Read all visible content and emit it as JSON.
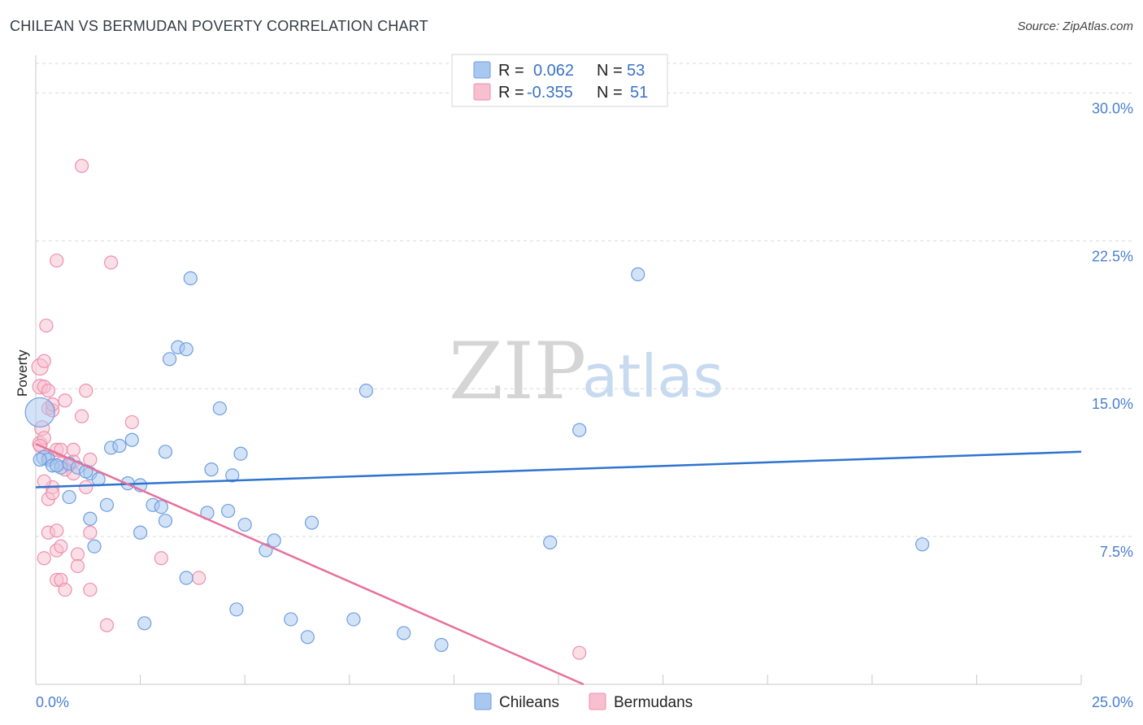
{
  "header": {
    "title": "CHILEAN VS BERMUDAN POVERTY CORRELATION CHART",
    "source": "Source: ZipAtlas.com"
  },
  "watermark": {
    "zip": "ZIP",
    "atlas": "atlas"
  },
  "colors": {
    "chilean_fill": "#a8c8f0",
    "chilean_stroke": "#6d9ee0",
    "chilean_line": "#2e74cf",
    "bermudan_fill": "#f7bfd0",
    "bermudan_stroke": "#ee8fae",
    "bermudan_line": "#e8709a",
    "tick_color": "#4a7fd0",
    "grid_color": "#d9d9d9"
  },
  "legend": {
    "rows": [
      {
        "r_label": "R =",
        "r_value": "0.062",
        "n_label": "N =",
        "n_value": "53"
      },
      {
        "r_label": "R =",
        "r_value": "-0.355",
        "n_label": "N =",
        "n_value": "51"
      }
    ]
  },
  "bottom_legend": [
    "Chileans",
    "Bermudans"
  ],
  "chart_data": {
    "type": "scatter",
    "title": "CHILEAN VS BERMUDAN POVERTY CORRELATION CHART",
    "xlabel": "",
    "ylabel": "Poverty",
    "xlim": [
      0,
      25
    ],
    "ylim": [
      0,
      31.5
    ],
    "x_tick_labels": [
      "0.0%",
      "25.0%"
    ],
    "y_ticks": [
      7.5,
      15.0,
      22.5,
      30.0
    ],
    "y_tick_labels": [
      "7.5%",
      "15.0%",
      "22.5%",
      "30.0%"
    ],
    "grid": true,
    "legend_position": "top-center",
    "series": [
      {
        "name": "Chileans",
        "r": 0.062,
        "n": 53,
        "trend": {
          "x": [
            0,
            25
          ],
          "y": [
            10.0,
            11.8
          ]
        },
        "points": [
          {
            "x": 0.1,
            "y": 13.8,
            "s": 18
          },
          {
            "x": 0.2,
            "y": 11.5,
            "s": 9
          },
          {
            "x": 0.3,
            "y": 11.4,
            "s": 8
          },
          {
            "x": 0.4,
            "y": 11.1,
            "s": 8
          },
          {
            "x": 0.6,
            "y": 11.0,
            "s": 8
          },
          {
            "x": 0.8,
            "y": 11.2,
            "s": 8
          },
          {
            "x": 1.0,
            "y": 11.0,
            "s": 8
          },
          {
            "x": 1.3,
            "y": 10.7,
            "s": 8
          },
          {
            "x": 1.5,
            "y": 10.4,
            "s": 8
          },
          {
            "x": 0.8,
            "y": 9.5,
            "s": 8
          },
          {
            "x": 1.3,
            "y": 8.4,
            "s": 8
          },
          {
            "x": 1.4,
            "y": 7.0,
            "s": 8
          },
          {
            "x": 1.7,
            "y": 9.1,
            "s": 8
          },
          {
            "x": 1.8,
            "y": 12.0,
            "s": 8
          },
          {
            "x": 2.0,
            "y": 12.1,
            "s": 8
          },
          {
            "x": 2.3,
            "y": 12.4,
            "s": 8
          },
          {
            "x": 2.2,
            "y": 10.2,
            "s": 8
          },
          {
            "x": 2.5,
            "y": 10.1,
            "s": 8
          },
          {
            "x": 2.5,
            "y": 7.7,
            "s": 8
          },
          {
            "x": 2.8,
            "y": 9.1,
            "s": 8
          },
          {
            "x": 3.0,
            "y": 9.0,
            "s": 8
          },
          {
            "x": 3.1,
            "y": 11.8,
            "s": 8
          },
          {
            "x": 3.1,
            "y": 8.3,
            "s": 8
          },
          {
            "x": 3.2,
            "y": 16.5,
            "s": 8
          },
          {
            "x": 3.4,
            "y": 17.1,
            "s": 8
          },
          {
            "x": 3.6,
            "y": 17.0,
            "s": 8
          },
          {
            "x": 3.7,
            "y": 20.6,
            "s": 8
          },
          {
            "x": 4.1,
            "y": 8.7,
            "s": 8
          },
          {
            "x": 4.2,
            "y": 10.9,
            "s": 8
          },
          {
            "x": 4.4,
            "y": 14.0,
            "s": 8
          },
          {
            "x": 4.6,
            "y": 8.8,
            "s": 8
          },
          {
            "x": 4.7,
            "y": 10.6,
            "s": 8
          },
          {
            "x": 4.9,
            "y": 11.7,
            "s": 8
          },
          {
            "x": 5.0,
            "y": 8.1,
            "s": 8
          },
          {
            "x": 3.6,
            "y": 5.4,
            "s": 8
          },
          {
            "x": 2.6,
            "y": 3.1,
            "s": 8
          },
          {
            "x": 4.8,
            "y": 3.8,
            "s": 8
          },
          {
            "x": 5.5,
            "y": 6.8,
            "s": 8
          },
          {
            "x": 5.7,
            "y": 7.3,
            "s": 8
          },
          {
            "x": 6.1,
            "y": 3.3,
            "s": 8
          },
          {
            "x": 6.5,
            "y": 2.4,
            "s": 8
          },
          {
            "x": 6.6,
            "y": 8.2,
            "s": 8
          },
          {
            "x": 7.6,
            "y": 3.3,
            "s": 8
          },
          {
            "x": 7.9,
            "y": 14.9,
            "s": 8
          },
          {
            "x": 8.8,
            "y": 2.6,
            "s": 8
          },
          {
            "x": 9.7,
            "y": 2.0,
            "s": 8
          },
          {
            "x": 12.3,
            "y": 7.2,
            "s": 8
          },
          {
            "x": 13.0,
            "y": 12.9,
            "s": 8
          },
          {
            "x": 14.4,
            "y": 20.8,
            "s": 8
          },
          {
            "x": 21.2,
            "y": 7.1,
            "s": 8
          },
          {
            "x": 0.1,
            "y": 11.4,
            "s": 8
          },
          {
            "x": 0.5,
            "y": 11.1,
            "s": 8
          },
          {
            "x": 1.2,
            "y": 10.8,
            "s": 8
          }
        ]
      },
      {
        "name": "Bermudans",
        "r": -0.355,
        "n": 51,
        "trend": {
          "x": [
            0,
            13.1
          ],
          "y": [
            12.2,
            0
          ]
        },
        "points": [
          {
            "x": 0.1,
            "y": 16.1,
            "s": 10
          },
          {
            "x": 0.1,
            "y": 15.1,
            "s": 9
          },
          {
            "x": 0.15,
            "y": 13.0,
            "s": 9
          },
          {
            "x": 0.1,
            "y": 12.2,
            "s": 9
          },
          {
            "x": 0.2,
            "y": 12.5,
            "s": 8
          },
          {
            "x": 0.2,
            "y": 16.4,
            "s": 8
          },
          {
            "x": 0.2,
            "y": 15.1,
            "s": 8
          },
          {
            "x": 0.25,
            "y": 18.2,
            "s": 8
          },
          {
            "x": 0.3,
            "y": 14.9,
            "s": 8
          },
          {
            "x": 0.3,
            "y": 14.0,
            "s": 8
          },
          {
            "x": 0.4,
            "y": 13.9,
            "s": 8
          },
          {
            "x": 0.4,
            "y": 14.2,
            "s": 8
          },
          {
            "x": 0.5,
            "y": 21.5,
            "s": 8
          },
          {
            "x": 0.5,
            "y": 11.9,
            "s": 8
          },
          {
            "x": 0.6,
            "y": 11.9,
            "s": 8
          },
          {
            "x": 0.7,
            "y": 14.4,
            "s": 8
          },
          {
            "x": 0.8,
            "y": 11.1,
            "s": 8
          },
          {
            "x": 0.9,
            "y": 11.9,
            "s": 8
          },
          {
            "x": 0.9,
            "y": 11.3,
            "s": 8
          },
          {
            "x": 0.9,
            "y": 10.7,
            "s": 8
          },
          {
            "x": 1.1,
            "y": 13.6,
            "s": 8
          },
          {
            "x": 1.2,
            "y": 14.9,
            "s": 8
          },
          {
            "x": 1.2,
            "y": 10.0,
            "s": 8
          },
          {
            "x": 1.3,
            "y": 11.4,
            "s": 8
          },
          {
            "x": 1.1,
            "y": 26.3,
            "s": 8
          },
          {
            "x": 1.8,
            "y": 21.4,
            "s": 8
          },
          {
            "x": 2.3,
            "y": 13.3,
            "s": 8
          },
          {
            "x": 0.4,
            "y": 10.0,
            "s": 8
          },
          {
            "x": 0.3,
            "y": 9.4,
            "s": 8
          },
          {
            "x": 0.4,
            "y": 9.7,
            "s": 8
          },
          {
            "x": 0.3,
            "y": 7.7,
            "s": 8
          },
          {
            "x": 0.5,
            "y": 7.8,
            "s": 8
          },
          {
            "x": 0.2,
            "y": 6.4,
            "s": 8
          },
          {
            "x": 0.5,
            "y": 6.8,
            "s": 8
          },
          {
            "x": 0.6,
            "y": 7.0,
            "s": 8
          },
          {
            "x": 0.5,
            "y": 5.3,
            "s": 8
          },
          {
            "x": 0.6,
            "y": 5.3,
            "s": 8
          },
          {
            "x": 0.7,
            "y": 4.8,
            "s": 8
          },
          {
            "x": 1.0,
            "y": 6.6,
            "s": 8
          },
          {
            "x": 1.0,
            "y": 6.0,
            "s": 8
          },
          {
            "x": 1.3,
            "y": 7.7,
            "s": 8
          },
          {
            "x": 1.3,
            "y": 4.8,
            "s": 8
          },
          {
            "x": 1.7,
            "y": 3.0,
            "s": 8
          },
          {
            "x": 3.0,
            "y": 6.4,
            "s": 8
          },
          {
            "x": 3.9,
            "y": 5.4,
            "s": 8
          },
          {
            "x": 13.0,
            "y": 1.6,
            "s": 8
          },
          {
            "x": 0.1,
            "y": 12.1,
            "s": 8
          },
          {
            "x": 0.3,
            "y": 11.5,
            "s": 8
          },
          {
            "x": 0.6,
            "y": 11.2,
            "s": 8
          },
          {
            "x": 0.2,
            "y": 10.3,
            "s": 8
          },
          {
            "x": 0.7,
            "y": 10.9,
            "s": 8
          }
        ]
      }
    ]
  }
}
